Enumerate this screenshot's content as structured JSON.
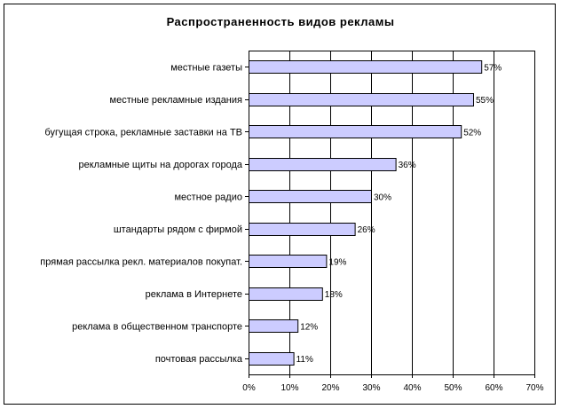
{
  "chart_data": {
    "type": "bar",
    "orientation": "horizontal",
    "title": "Распространенность видов рекламы",
    "categories": [
      "местные газеты",
      "местные рекламные издания",
      "бугущая строка, рекламные заставки на ТВ",
      "рекламные щиты на дорогах города",
      "местное радио",
      "штандарты рядом с фирмой",
      "прямая рассылка рекл. материалов покупат.",
      "реклама в Интернете",
      "реклама в общественном транспорте",
      "почтовая рассылка"
    ],
    "values": [
      57,
      55,
      52,
      36,
      30,
      26,
      19,
      18,
      12,
      11
    ],
    "value_labels": [
      "57%",
      "55%",
      "52%",
      "36%",
      "30%",
      "26%",
      "19%",
      "18%",
      "12%",
      "11%"
    ],
    "x_ticks": [
      "0%",
      "10%",
      "20%",
      "30%",
      "40%",
      "50%",
      "60%",
      "70%"
    ],
    "xlim": [
      0,
      70
    ],
    "grid": "vertical",
    "legend": "none",
    "bar_color": "#ccccff",
    "bar_edge_color": "#000000"
  }
}
